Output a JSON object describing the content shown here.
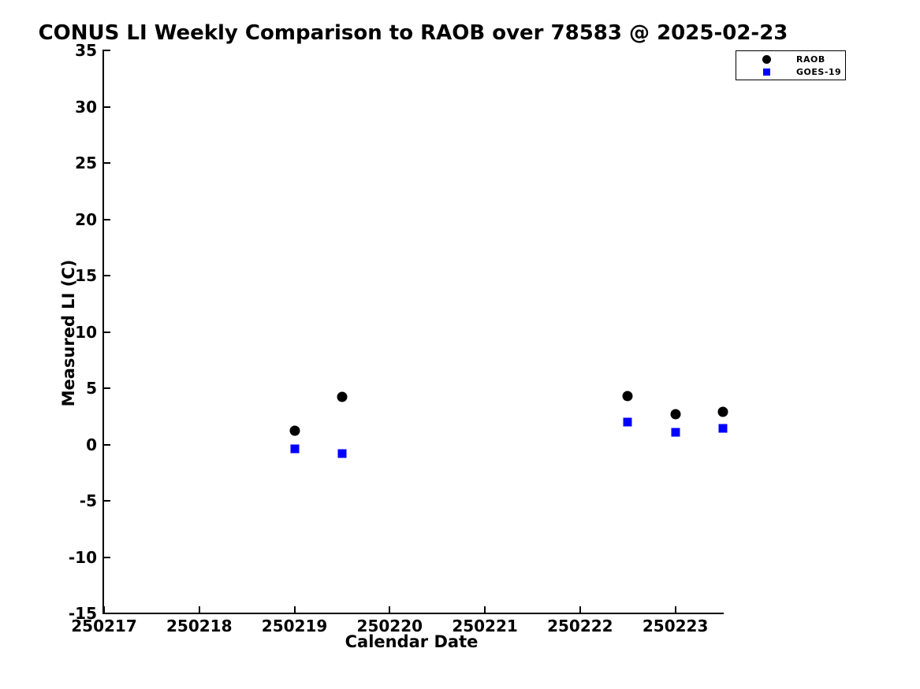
{
  "chart_data": {
    "type": "scatter",
    "title": "CONUS LI Weekly Comparison to RAOB over 78583 @ 2025-02-23",
    "xlabel": "Calendar Date",
    "ylabel": "Measured LI (C)",
    "xlim": [
      250217,
      250223.5
    ],
    "ylim": [
      -15,
      35
    ],
    "xticks": [
      "250217",
      "250218",
      "250219",
      "250220",
      "250221",
      "250222",
      "250223"
    ],
    "yticks": [
      35,
      30,
      25,
      20,
      15,
      10,
      5,
      0,
      -5,
      -10,
      -15
    ],
    "grid": false,
    "legend": {
      "position": "top-right"
    },
    "series": [
      {
        "name": "RAOB",
        "marker": "circle",
        "color": "#000000",
        "x": [
          250219.0,
          250219.5,
          250222.5,
          250223.0,
          250223.5
        ],
        "y": [
          1.2,
          4.2,
          4.3,
          2.7,
          2.9
        ]
      },
      {
        "name": "GOES-19",
        "marker": "square",
        "color": "#0000ff",
        "x": [
          250219.0,
          250219.5,
          250222.5,
          250223.0,
          250223.5
        ],
        "y": [
          -0.4,
          -0.8,
          2.0,
          1.1,
          1.4
        ]
      }
    ]
  },
  "colors": {
    "background": "#ffffff",
    "axis": "#000000",
    "raob": "#000000",
    "goes19": "#0000ff"
  }
}
